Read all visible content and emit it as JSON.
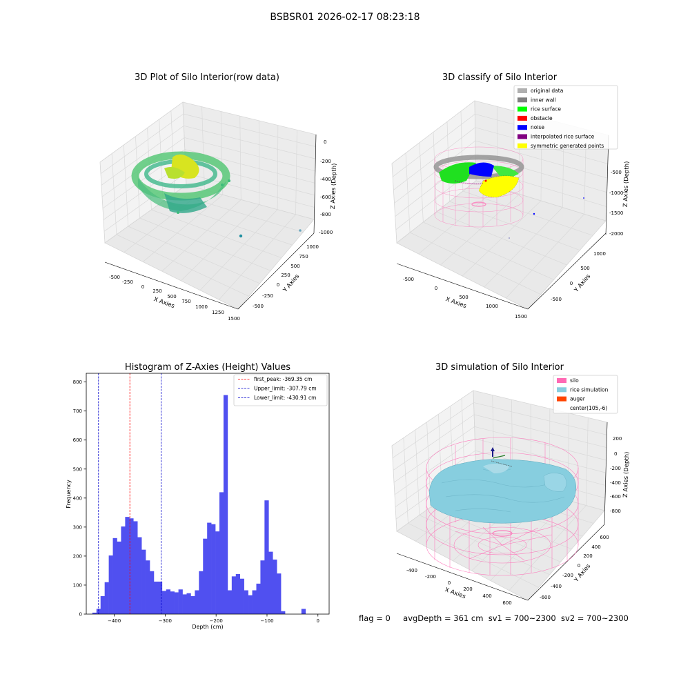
{
  "suptitle": "BSBSR01 2026-02-17 08:23:18",
  "footer": {
    "flag": "flag = 0",
    "avg_depth": "avgDepth = 361 cm",
    "sv1": "sv1 = 700~2300",
    "sv2": "sv2 = 700~2300"
  },
  "colors": {
    "histogram_bar": "#5050f0",
    "first_peak_line": "#ff0000",
    "limit_lines": "#0000cc",
    "silo_wireframe": "#ff69b4",
    "rice_simulation": "#87cedf",
    "auger": "#ff4500"
  },
  "chart_data": [
    {
      "type": "scatter",
      "title": "3D Plot of Silo Interior(row data)",
      "xlabel": "X Axies",
      "ylabel": "Y Axies",
      "zlabel": "Z Axies (Depth)",
      "x_ticks": [
        "-500",
        "-250",
        "0",
        "250",
        "500",
        "750",
        "1000",
        "1250",
        "1500"
      ],
      "y_ticks": [
        "-500",
        "-250",
        "0",
        "250",
        "500",
        "750",
        "1000"
      ],
      "z_ticks": [
        "0",
        "-200",
        "-400",
        "-600",
        "-800",
        "-1000"
      ]
    },
    {
      "type": "scatter",
      "title": "3D classify of Silo Interior",
      "xlabel": "X Axies",
      "ylabel": "Y Axies",
      "zlabel": "Z Axies (Depth)",
      "x_ticks": [
        "-500",
        "0",
        "500",
        "1000",
        "1500"
      ],
      "y_ticks": [
        "-500",
        "0",
        "500",
        "1000"
      ],
      "z_ticks": [
        "-500",
        "-1000",
        "-1500",
        "-2000"
      ],
      "legend_position": "top-right",
      "legend": [
        {
          "label": "original data",
          "color": "#b0b0b0"
        },
        {
          "label": "inner wall",
          "color": "#808080"
        },
        {
          "label": "rice surface",
          "color": "#00ff00"
        },
        {
          "label": "obstacle",
          "color": "#ff0000"
        },
        {
          "label": "noise",
          "color": "#0000ff"
        },
        {
          "label": "interpolated rice surface",
          "color": "#800080"
        },
        {
          "label": "symmetric generated points",
          "color": "#ffff00"
        }
      ]
    },
    {
      "type": "bar",
      "title": "Histogram of Z-Axies (Height) Values",
      "xlabel": "Depth (cm)",
      "ylabel": "Frequency",
      "xlim": [
        -455,
        22
      ],
      "ylim": [
        0,
        830
      ],
      "x_ticks": [
        -400,
        -300,
        -200,
        -100,
        0
      ],
      "y_ticks": [
        0,
        100,
        200,
        300,
        400,
        500,
        600,
        700,
        800
      ],
      "bin_width": 8.05,
      "bin_start": -443.0,
      "values": [
        5,
        18,
        62,
        110,
        202,
        262,
        250,
        302,
        335,
        330,
        320,
        265,
        222,
        185,
        148,
        112,
        112,
        80,
        85,
        78,
        75,
        85,
        68,
        72,
        62,
        82,
        148,
        260,
        315,
        310,
        285,
        420,
        755,
        82,
        130,
        138,
        122,
        82,
        65,
        82,
        105,
        185,
        392,
        215,
        188,
        140,
        10,
        0,
        0,
        0,
        0,
        18
      ],
      "legend_position": "top-right",
      "lines": [
        {
          "label": "first_peak: -369.35 cm",
          "x": -369.35,
          "color": "#ff0000"
        },
        {
          "label": "Upper_limit: -307.79 cm",
          "x": -307.79,
          "color": "#0000cc"
        },
        {
          "label": "Lower_limit: -430.91 cm",
          "x": -430.91,
          "color": "#0000cc"
        }
      ]
    },
    {
      "type": "scatter",
      "title": "3D simulation of Silo Interior",
      "xlabel": "X Axies",
      "ylabel": "Y Axies",
      "zlabel": "Z Axies (Depth)",
      "x_ticks": [
        "-400",
        "-200",
        "0",
        "200",
        "400",
        "600"
      ],
      "y_ticks": [
        "-600",
        "-400",
        "-200",
        "0",
        "200",
        "400",
        "600"
      ],
      "z_ticks": [
        "200",
        "0",
        "-200",
        "-400",
        "-600",
        "-800"
      ],
      "legend_position": "top-right",
      "legend": [
        {
          "label": "silo",
          "color": "#ff69b4"
        },
        {
          "label": "rice simulation",
          "color": "#87cedf"
        },
        {
          "label": "auger",
          "color": "#ff4500"
        },
        {
          "label": "center(105,-6)",
          "color": ""
        }
      ]
    }
  ]
}
